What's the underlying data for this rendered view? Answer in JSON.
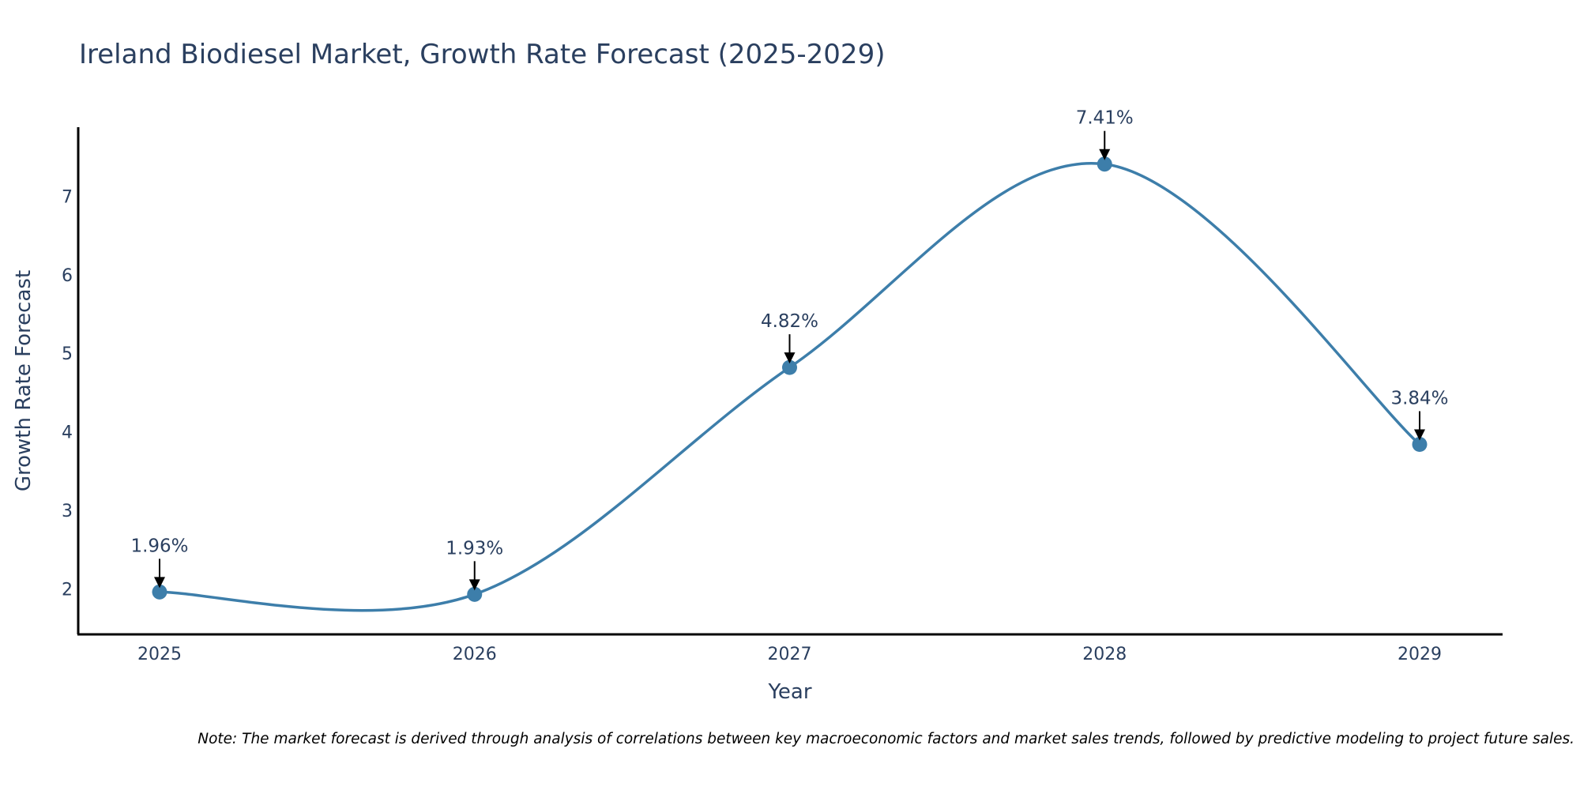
{
  "colors": {
    "line": "#3d7eaa",
    "marker": "#3d7eaa",
    "axis": "#000000",
    "text": "#2a3f5f",
    "arrow": "#000000"
  },
  "chart_data": {
    "type": "line",
    "title": "Ireland Biodiesel Market, Growth Rate Forecast (2025-2029)",
    "xlabel": "Year",
    "ylabel": "Growth Rate Forecast",
    "categories": [
      "2025",
      "2026",
      "2027",
      "2028",
      "2029"
    ],
    "series": [
      {
        "name": "Growth Rate Forecast",
        "values": [
          1.96,
          1.93,
          4.82,
          7.41,
          3.84
        ]
      }
    ],
    "data_labels": [
      "1.96%",
      "1.93%",
      "4.82%",
      "7.41%",
      "3.84%"
    ],
    "y_ticks": [
      2,
      3,
      4,
      5,
      6,
      7
    ],
    "y_tick_labels": [
      "2",
      "3",
      "4",
      "5",
      "6",
      "7"
    ],
    "ylim": [
      1.42,
      7.88
    ],
    "line_shape": "spline",
    "grid": false,
    "legend": "none"
  },
  "note": "Note: The market forecast is derived through analysis of correlations between key macroeconomic factors and market sales trends, followed by predictive modeling to project future sales."
}
